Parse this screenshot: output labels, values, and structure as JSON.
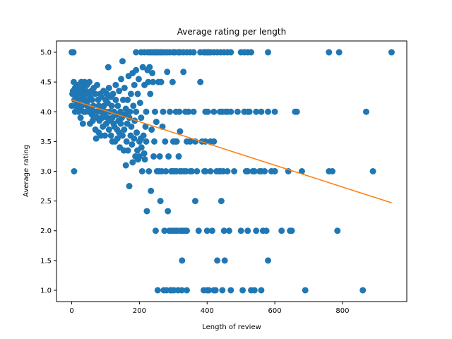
{
  "chart_data": {
    "type": "scatter",
    "title": "Average rating per length",
    "xlabel": "Length of review",
    "ylabel": "Average rating",
    "xlim": [
      -45,
      990
    ],
    "ylim": [
      0.81,
      5.19
    ],
    "x_ticks": [
      0,
      200,
      400,
      600,
      800
    ],
    "y_ticks": [
      1.0,
      1.5,
      2.0,
      2.5,
      3.0,
      3.5,
      4.0,
      4.5,
      5.0
    ],
    "x_tick_labels": [
      "0",
      "200",
      "400",
      "600",
      "800"
    ],
    "y_tick_labels": [
      "1.0",
      "1.5",
      "2.0",
      "2.5",
      "3.0",
      "3.5",
      "4.0",
      "4.5",
      "5.0"
    ],
    "grid": false,
    "legend": "none",
    "colors": {
      "points": "#1f77b4",
      "trend": "#ff7f0e"
    },
    "trend_line": {
      "x": [
        0,
        945
      ],
      "y": [
        4.2,
        2.47
      ]
    },
    "points": [
      [
        0,
        5.0
      ],
      [
        2,
        5.0
      ],
      [
        5,
        5.0
      ],
      [
        0,
        4.1
      ],
      [
        2,
        4.3
      ],
      [
        4,
        4.35
      ],
      [
        6,
        4.5
      ],
      [
        7,
        3.0
      ],
      [
        8,
        4.2
      ],
      [
        10,
        4.4
      ],
      [
        10,
        4.0
      ],
      [
        12,
        4.1
      ],
      [
        14,
        4.25
      ],
      [
        15,
        4.35
      ],
      [
        16,
        4.45
      ],
      [
        18,
        4.15
      ],
      [
        18,
        4.3
      ],
      [
        20,
        4.0
      ],
      [
        20,
        4.4
      ],
      [
        22,
        4.2
      ],
      [
        24,
        4.05
      ],
      [
        25,
        4.35
      ],
      [
        26,
        3.9
      ],
      [
        28,
        4.3
      ],
      [
        28,
        4.5
      ],
      [
        30,
        4.2
      ],
      [
        30,
        4.1
      ],
      [
        32,
        4.4
      ],
      [
        33,
        3.8
      ],
      [
        34,
        4.25
      ],
      [
        35,
        4.45
      ],
      [
        36,
        4.0
      ],
      [
        38,
        4.3
      ],
      [
        38,
        4.5
      ],
      [
        40,
        4.2
      ],
      [
        40,
        4.0
      ],
      [
        42,
        4.35
      ],
      [
        44,
        4.15
      ],
      [
        45,
        4.45
      ],
      [
        46,
        4.1
      ],
      [
        48,
        4.3
      ],
      [
        50,
        4.2
      ],
      [
        50,
        4.0
      ],
      [
        52,
        4.5
      ],
      [
        54,
        3.8
      ],
      [
        55,
        4.25
      ],
      [
        56,
        4.05
      ],
      [
        58,
        4.35
      ],
      [
        60,
        3.95
      ],
      [
        60,
        4.2
      ],
      [
        62,
        3.85
      ],
      [
        64,
        4.1
      ],
      [
        65,
        4.4
      ],
      [
        66,
        3.9
      ],
      [
        68,
        4.0
      ],
      [
        70,
        4.3
      ],
      [
        70,
        3.7
      ],
      [
        72,
        3.55
      ],
      [
        74,
        4.0
      ],
      [
        75,
        4.45
      ],
      [
        76,
        3.9
      ],
      [
        78,
        4.2
      ],
      [
        80,
        3.65
      ],
      [
        80,
        4.1
      ],
      [
        82,
        3.85
      ],
      [
        84,
        4.3
      ],
      [
        85,
        4.0
      ],
      [
        86,
        3.6
      ],
      [
        88,
        4.25
      ],
      [
        90,
        4.05
      ],
      [
        90,
        3.9
      ],
      [
        92,
        3.75
      ],
      [
        94,
        4.35
      ],
      [
        95,
        4.1
      ],
      [
        96,
        3.95
      ],
      [
        98,
        3.6
      ],
      [
        100,
        4.2
      ],
      [
        100,
        4.0
      ],
      [
        102,
        3.8
      ],
      [
        104,
        4.3
      ],
      [
        105,
        3.9
      ],
      [
        106,
        4.15
      ],
      [
        108,
        4.75
      ],
      [
        110,
        4.4
      ],
      [
        110,
        3.7
      ],
      [
        112,
        4.0
      ],
      [
        114,
        3.85
      ],
      [
        115,
        4.25
      ],
      [
        116,
        3.6
      ],
      [
        118,
        4.1
      ],
      [
        120,
        3.9
      ],
      [
        120,
        3.5
      ],
      [
        122,
        4.3
      ],
      [
        124,
        3.8
      ],
      [
        125,
        4.0
      ],
      [
        126,
        3.75
      ],
      [
        128,
        3.5
      ],
      [
        130,
        4.45
      ],
      [
        130,
        4.2
      ],
      [
        132,
        3.95
      ],
      [
        134,
        3.7
      ],
      [
        135,
        3.55
      ],
      [
        136,
        4.1
      ],
      [
        138,
        3.85
      ],
      [
        140,
        4.35
      ],
      [
        140,
        3.65
      ],
      [
        142,
        3.4
      ],
      [
        144,
        4.0
      ],
      [
        145,
        3.8
      ],
      [
        146,
        4.55
      ],
      [
        148,
        3.9
      ],
      [
        150,
        4.85
      ],
      [
        150,
        3.6
      ],
      [
        152,
        4.2
      ],
      [
        154,
        3.35
      ],
      [
        155,
        3.7
      ],
      [
        156,
        4.4
      ],
      [
        158,
        3.95
      ],
      [
        160,
        4.05
      ],
      [
        160,
        3.1
      ],
      [
        162,
        3.5
      ],
      [
        164,
        3.8
      ],
      [
        165,
        4.2
      ],
      [
        166,
        3.35
      ],
      [
        168,
        4.6
      ],
      [
        170,
        2.75
      ],
      [
        170,
        3.9
      ],
      [
        172,
        4.0
      ],
      [
        174,
        3.6
      ],
      [
        175,
        4.3
      ],
      [
        176,
        3.75
      ],
      [
        178,
        3.45
      ],
      [
        180,
        4.65
      ],
      [
        180,
        3.15
      ],
      [
        182,
        4.1
      ],
      [
        184,
        3.55
      ],
      [
        185,
        4.45
      ],
      [
        186,
        3.85
      ],
      [
        188,
        3.25
      ],
      [
        190,
        4.0
      ],
      [
        190,
        4.7
      ],
      [
        192,
        3.65
      ],
      [
        194,
        3.35
      ],
      [
        195,
        4.3
      ],
      [
        196,
        3.2
      ],
      [
        198,
        4.55
      ],
      [
        200,
        3.5
      ],
      [
        200,
        3.25
      ],
      [
        202,
        4.15
      ],
      [
        204,
        3.55
      ],
      [
        205,
        3.9
      ],
      [
        206,
        3.4
      ],
      [
        208,
        3.0
      ],
      [
        210,
        4.75
      ],
      [
        212,
        3.6
      ],
      [
        214,
        3.3
      ],
      [
        215,
        4.45
      ],
      [
        216,
        3.2
      ],
      [
        218,
        3.75
      ],
      [
        220,
        4.0
      ],
      [
        220,
        3.5
      ],
      [
        222,
        2.33
      ],
      [
        224,
        4.7
      ],
      [
        226,
        4.5
      ],
      [
        228,
        3.0
      ],
      [
        230,
        4.75
      ],
      [
        232,
        4.3
      ],
      [
        234,
        2.67
      ],
      [
        236,
        3.7
      ],
      [
        238,
        4.65
      ],
      [
        240,
        4.5
      ],
      [
        242,
        3.25
      ],
      [
        244,
        3.5
      ],
      [
        246,
        4.0
      ],
      [
        248,
        2.0
      ],
      [
        250,
        3.83
      ],
      [
        252,
        3.0
      ],
      [
        254,
        1.0
      ],
      [
        256,
        4.5
      ],
      [
        258,
        3.0
      ],
      [
        260,
        3.25
      ],
      [
        262,
        2.5
      ],
      [
        264,
        4.5
      ],
      [
        266,
        3.0
      ],
      [
        268,
        3.75
      ],
      [
        270,
        4.0
      ],
      [
        272,
        1.0
      ],
      [
        274,
        2.0
      ],
      [
        276,
        3.5
      ],
      [
        278,
        3.0
      ],
      [
        280,
        1.0
      ],
      [
        282,
        4.67
      ],
      [
        284,
        2.33
      ],
      [
        286,
        3.25
      ],
      [
        288,
        2.0
      ],
      [
        290,
        4.0
      ],
      [
        292,
        1.0
      ],
      [
        294,
        3.0
      ],
      [
        296,
        2.0
      ],
      [
        298,
        4.5
      ],
      [
        300,
        3.0
      ],
      [
        302,
        1.0
      ],
      [
        304,
        2.0
      ],
      [
        306,
        3.5
      ],
      [
        308,
        4.0
      ],
      [
        310,
        3.0
      ],
      [
        312,
        2.0
      ],
      [
        314,
        1.0
      ],
      [
        316,
        3.25
      ],
      [
        318,
        4.0
      ],
      [
        320,
        3.67
      ],
      [
        322,
        2.0
      ],
      [
        324,
        3.0
      ],
      [
        326,
        1.5
      ],
      [
        328,
        2.0
      ],
      [
        330,
        4.67
      ],
      [
        332,
        3.0
      ],
      [
        334,
        2.0
      ],
      [
        336,
        4.0
      ],
      [
        338,
        3.0
      ],
      [
        340,
        2.0
      ],
      [
        345,
        4.0
      ],
      [
        350,
        3.5
      ],
      [
        355,
        3.0
      ],
      [
        360,
        4.0
      ],
      [
        365,
        2.5
      ],
      [
        370,
        3.0
      ],
      [
        375,
        2.0
      ],
      [
        380,
        4.5
      ],
      [
        385,
        3.5
      ],
      [
        390,
        1.0
      ],
      [
        392,
        3.0
      ],
      [
        395,
        3.5
      ],
      [
        400,
        2.0
      ],
      [
        402,
        4.0
      ],
      [
        405,
        1.0
      ],
      [
        410,
        3.0
      ],
      [
        415,
        2.0
      ],
      [
        420,
        3.5
      ],
      [
        425,
        1.0
      ],
      [
        428,
        3.0
      ],
      [
        430,
        1.5
      ],
      [
        435,
        3.0
      ],
      [
        438,
        4.0
      ],
      [
        442,
        2.5
      ],
      [
        445,
        1.0
      ],
      [
        448,
        3.0
      ],
      [
        450,
        2.0
      ],
      [
        452,
        1.5
      ],
      [
        455,
        4.0
      ],
      [
        460,
        3.0
      ],
      [
        465,
        2.0
      ],
      [
        470,
        1.0
      ],
      [
        480,
        3.0
      ],
      [
        490,
        4.0
      ],
      [
        500,
        2.0
      ],
      [
        505,
        1.0
      ],
      [
        510,
        4.0
      ],
      [
        515,
        3.0
      ],
      [
        520,
        2.0
      ],
      [
        525,
        4.0
      ],
      [
        530,
        1.0
      ],
      [
        535,
        3.0
      ],
      [
        540,
        1.0
      ],
      [
        545,
        2.0
      ],
      [
        555,
        3.0
      ],
      [
        560,
        4.0
      ],
      [
        565,
        2.0
      ],
      [
        570,
        3.0
      ],
      [
        575,
        2.0
      ],
      [
        580,
        1.5
      ],
      [
        590,
        3.0
      ],
      [
        600,
        3.0
      ],
      [
        620,
        2.0
      ],
      [
        640,
        3.0
      ],
      [
        645,
        2.0
      ],
      [
        650,
        2.0
      ],
      [
        660,
        4.0
      ],
      [
        665,
        4.0
      ],
      [
        680,
        3.0
      ],
      [
        690,
        1.0
      ],
      [
        760,
        3.0
      ],
      [
        785,
        2.0
      ],
      [
        860,
        1.0
      ],
      [
        870,
        4.0
      ],
      [
        890,
        3.0
      ],
      [
        190,
        5.0
      ],
      [
        205,
        5.0
      ],
      [
        215,
        5.0
      ],
      [
        225,
        5.0
      ],
      [
        232,
        5.0
      ],
      [
        238,
        5.0
      ],
      [
        245,
        5.0
      ],
      [
        250,
        5.0
      ],
      [
        256,
        5.0
      ],
      [
        262,
        5.0
      ],
      [
        268,
        5.0
      ],
      [
        275,
        5.0
      ],
      [
        282,
        5.0
      ],
      [
        290,
        5.0
      ],
      [
        300,
        5.0
      ],
      [
        305,
        5.0
      ],
      [
        315,
        5.0
      ],
      [
        320,
        5.0
      ],
      [
        330,
        5.0
      ],
      [
        340,
        5.0
      ],
      [
        350,
        5.0
      ],
      [
        360,
        5.0
      ],
      [
        380,
        5.0
      ],
      [
        390,
        5.0
      ],
      [
        395,
        5.0
      ],
      [
        400,
        5.0
      ],
      [
        405,
        5.0
      ],
      [
        410,
        5.0
      ],
      [
        420,
        5.0
      ],
      [
        430,
        5.0
      ],
      [
        440,
        5.0
      ],
      [
        450,
        5.0
      ],
      [
        460,
        5.0
      ],
      [
        470,
        5.0
      ],
      [
        500,
        5.0
      ],
      [
        510,
        5.0
      ],
      [
        520,
        5.0
      ],
      [
        530,
        5.0
      ],
      [
        580,
        5.0
      ],
      [
        760,
        5.0
      ],
      [
        790,
        5.0
      ],
      [
        945,
        5.0
      ],
      [
        295,
        3.0
      ],
      [
        305,
        3.0
      ],
      [
        320,
        3.0
      ],
      [
        350,
        3.0
      ],
      [
        395,
        3.0
      ],
      [
        440,
        3.0
      ],
      [
        520,
        3.0
      ],
      [
        540,
        3.0
      ],
      [
        560,
        3.0
      ],
      [
        600,
        3.0
      ],
      [
        770,
        3.0
      ],
      [
        395,
        4.0
      ],
      [
        420,
        4.0
      ],
      [
        445,
        4.0
      ],
      [
        460,
        4.0
      ],
      [
        470,
        4.0
      ],
      [
        510,
        4.0
      ],
      [
        520,
        4.0
      ],
      [
        545,
        4.0
      ],
      [
        580,
        4.0
      ],
      [
        600,
        4.0
      ],
      [
        300,
        3.5
      ],
      [
        310,
        3.5
      ],
      [
        340,
        3.5
      ],
      [
        365,
        3.5
      ],
      [
        410,
        3.5
      ],
      [
        295,
        1.0
      ],
      [
        325,
        1.0
      ],
      [
        340,
        1.0
      ],
      [
        400,
        1.0
      ],
      [
        420,
        1.0
      ],
      [
        560,
        1.0
      ]
    ]
  }
}
